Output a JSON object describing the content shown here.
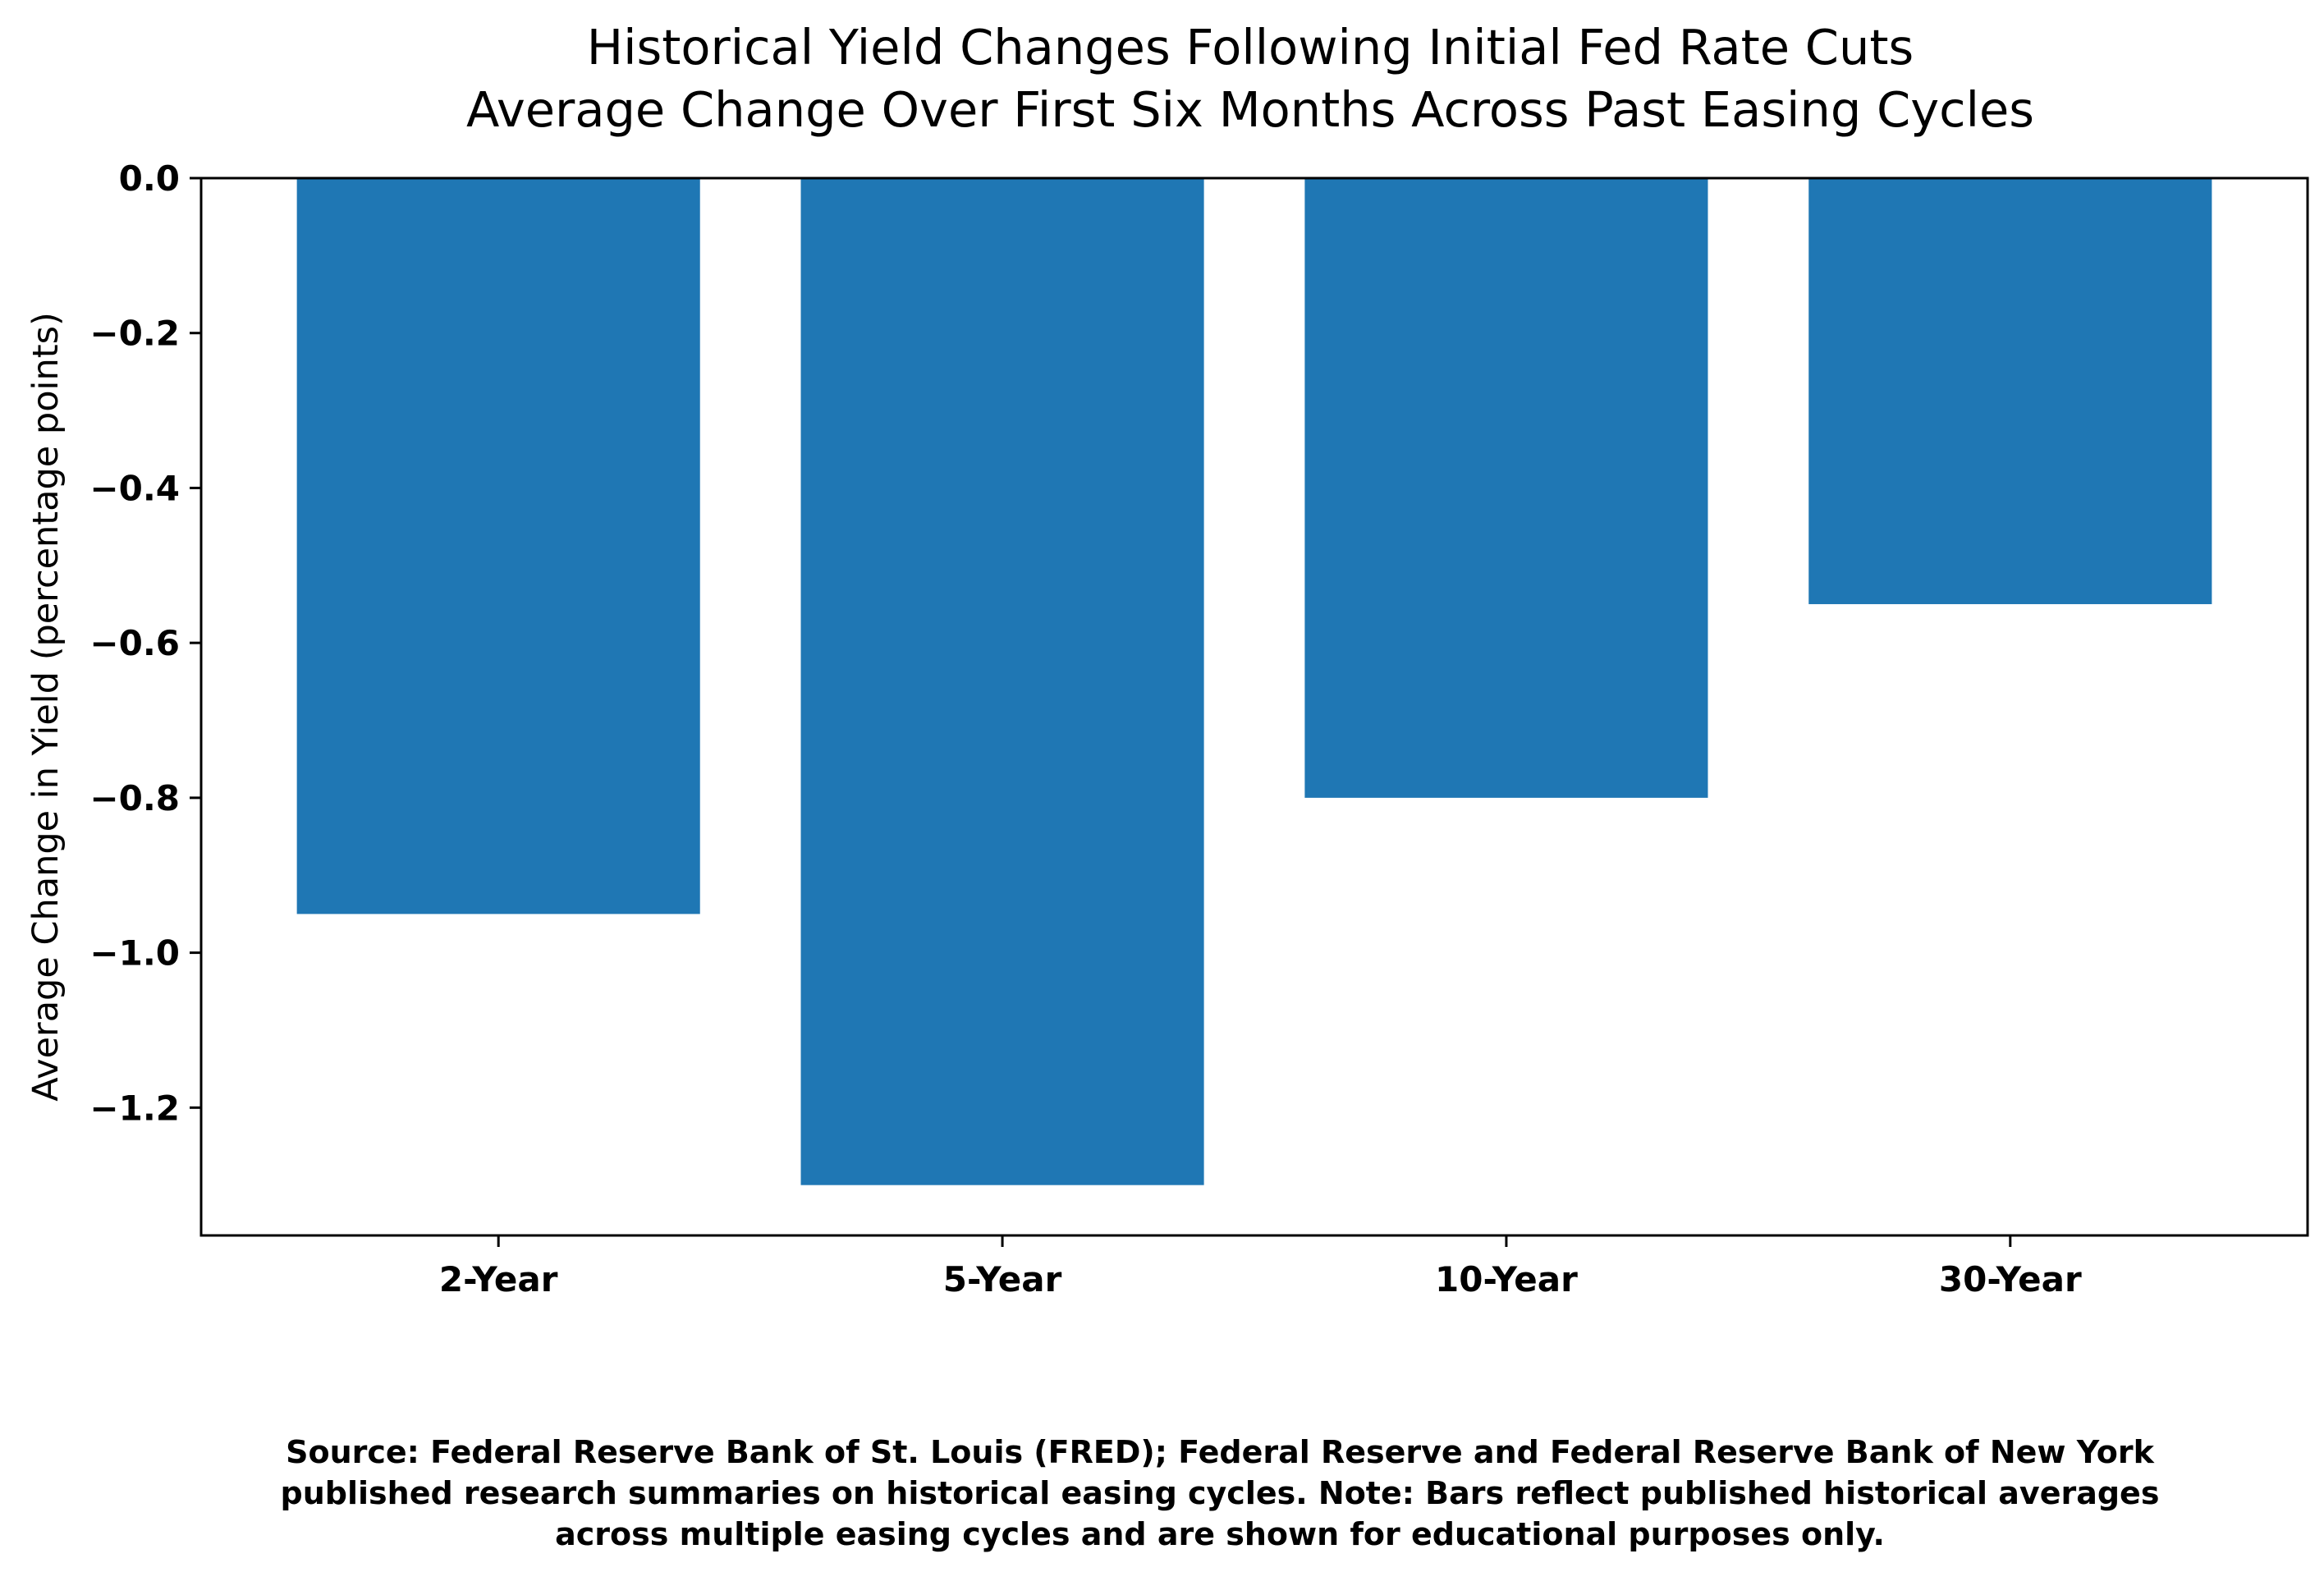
{
  "chart_data": {
    "type": "bar",
    "title": "Historical Yield Changes Following Initial Fed Rate Cuts",
    "subtitle": "Average Change Over First Six Months Across Past Easing Cycles",
    "xlabel": "",
    "ylabel": "Average Change in Yield (percentage points)",
    "categories": [
      "2-Year",
      "5-Year",
      "10-Year",
      "30-Year"
    ],
    "values": [
      -0.95,
      -1.3,
      -0.8,
      -0.55
    ],
    "ylim": [
      -1.365,
      0.0
    ],
    "yticks": [
      0.0,
      -0.2,
      -0.4,
      -0.6,
      -0.8,
      -1.0,
      -1.2
    ],
    "ytick_labels": [
      "0.0",
      "−0.2",
      "−0.4",
      "−0.6",
      "−0.8",
      "−1.0",
      "−1.2"
    ],
    "grid": false,
    "bar_color": "#1f77b4",
    "source_note": [
      "Source: Federal Reserve Bank of St. Louis (FRED); Federal Reserve and Federal Reserve Bank of New York",
      "published research summaries on historical easing cycles. Note: Bars reflect published historical averages",
      "across multiple easing cycles and are shown for educational purposes only."
    ]
  }
}
